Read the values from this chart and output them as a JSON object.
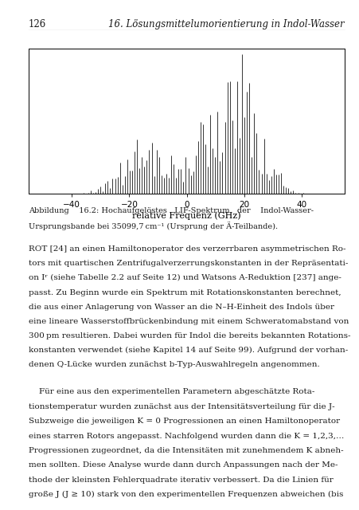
{
  "page_number": "126",
  "chapter_title": "16. Lösungsmittelumorientierung in Indol-Wasser",
  "xlabel": "relative Frequenz (GHz)",
  "xlim": [
    -55,
    55
  ],
  "xticks": [
    -40,
    -20,
    0,
    20,
    40
  ],
  "ylim": [
    0,
    1.0
  ],
  "bg_color": "#e8e6e0",
  "figure_caption_line1": "Abbildung    16.2: Hochaufgelöstes   LIF-Spektrum   der    Indol-Wasser-",
  "figure_caption_line2": "Ursprungsbande bei 35099,7 cm⁻¹ (Ursprung der Ä-Teilbande).",
  "body_para1": [
    "ROT [24] an einen Hamiltonoperator des verzerrbaren asymmetrischen Ro-",
    "tors mit quartischen Zentrifugalverzerrungskonstanten in der Repräsentati-",
    "on Iʳ (siehe Tabelle 2.2 auf Seite 12) und Watsons A-Reduktion [237] ange-",
    "passt. Zu Beginn wurde ein Spektrum mit Rotationskonstanten berechnet,",
    "die aus einer Anlagerung von Wasser an die N–H-Einheit des Indols über",
    "eine lineare Wasserstoffbrückenbindung mit einem Schweratomabstand von",
    "300 pm resultieren. Dabei wurden für Indol die bereits bekannten Rotations-",
    "konstanten verwendet (siehe Kapitel 14 auf Seite 99). Aufgrund der vorhan-",
    "denen Q-Lücke wurden zunächst b-Typ-Auswahlregeln angenommen."
  ],
  "body_para2": [
    "    Für eine aus den experimentellen Parametern abgeschätzte Rota-",
    "tionstemperatur wurden zunächst aus der Intensitätsverteilung für die J-",
    "Subzweige die jeweiligen K = 0 Progressionen an einen Hamiltonoperator",
    "eines starren Rotors angepasst. Nachfolgend wurden dann die K = 1,2,3,…",
    "Progressionen zugeordnet, da die Intensitäten mit zunehmendem K abneh-",
    "men sollten. Diese Analyse wurde dann durch Anpassungen nach der Me-",
    "thode der kleinsten Fehlerquadrate iterativ verbessert. Da die Linien für",
    "große J (J ≥ 10) stark von den experimentellen Frequenzen abweichen (bis"
  ]
}
